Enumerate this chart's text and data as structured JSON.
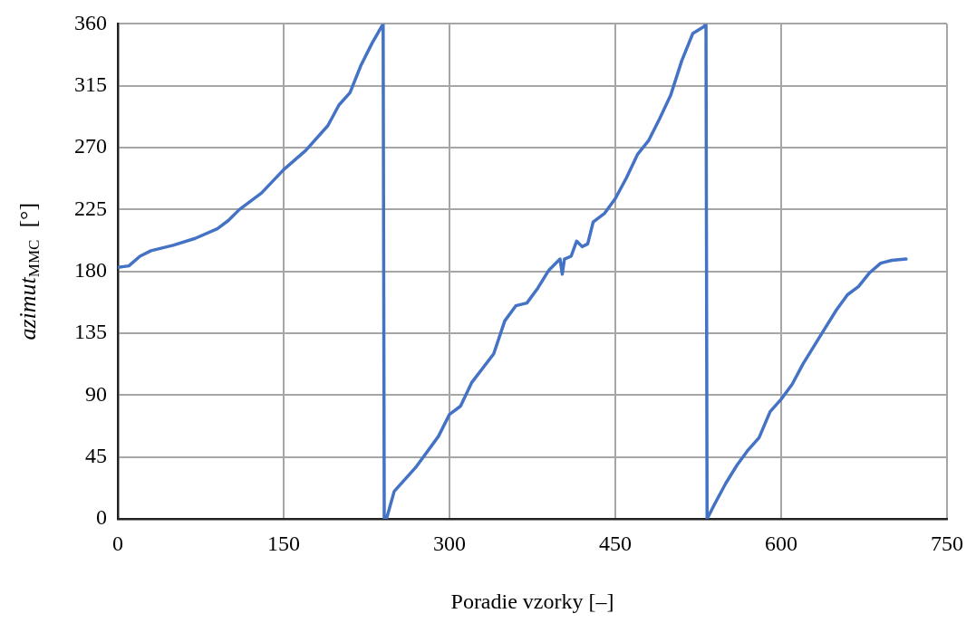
{
  "chart_data": {
    "type": "line",
    "xlabel": "Poradie vzorky [–]",
    "ylabel": "azimut$_{MMC}$  [°]",
    "x": [
      0,
      10,
      20,
      30,
      50,
      70,
      90,
      100,
      110,
      130,
      150,
      170,
      190,
      200,
      210,
      220,
      230,
      240,
      241,
      243,
      250,
      270,
      290,
      300,
      310,
      320,
      340,
      350,
      360,
      370,
      380,
      390,
      400,
      402,
      404,
      410,
      415,
      420,
      425,
      430,
      440,
      450,
      460,
      470,
      480,
      490,
      500,
      510,
      520,
      530,
      532,
      533,
      540,
      550,
      560,
      570,
      580,
      590,
      600,
      610,
      620,
      630,
      640,
      650,
      660,
      670,
      680,
      690,
      700,
      713
    ],
    "series": [
      {
        "color": "#4472c4",
        "values": [
          183,
          184,
          191,
          195,
          199,
          204,
          211,
          217,
          225,
          237,
          254,
          268,
          286,
          301,
          310,
          330,
          346,
          360,
          0,
          0,
          20,
          38,
          60,
          76,
          82,
          99,
          120,
          144,
          155,
          157,
          168,
          181,
          189,
          178,
          189,
          191,
          202,
          198,
          200,
          216,
          222,
          233,
          248,
          265,
          275,
          291,
          308,
          333,
          353,
          358,
          360,
          0,
          11,
          26,
          39,
          50,
          59,
          78,
          87,
          98,
          113,
          126,
          139,
          152,
          163,
          169,
          179,
          186,
          188,
          189
        ]
      }
    ],
    "xlim": [
      0,
      750
    ],
    "xticks": [
      0,
      150,
      300,
      450,
      600,
      750
    ],
    "ylim": [
      0,
      360
    ],
    "yticks": [
      0,
      45,
      90,
      135,
      180,
      225,
      270,
      315,
      360
    ],
    "grid": true,
    "legend": false,
    "marker": "none",
    "line_style": "solid"
  }
}
